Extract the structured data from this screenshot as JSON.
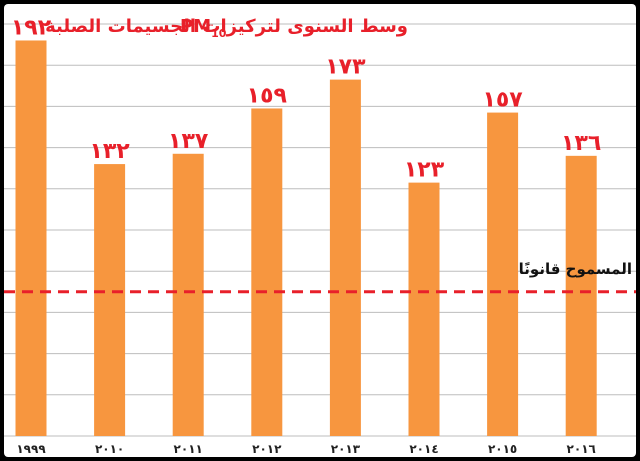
{
  "chart_data": {
    "type": "bar",
    "title": "وسط السنوى لتركيزات الجسيمات الصلبة",
    "title_pm": "PM",
    "title_pm_sub": "10",
    "categories": [
      "1999",
      "2010",
      "2011",
      "2012",
      "2013",
      "2014",
      "2015",
      "2016"
    ],
    "tick_labels": [
      "١٩٩٩",
      "٢٠١٠",
      "٢٠١١",
      "٢٠١٢",
      "٢٠١٣",
      "٢٠١٤",
      "٢٠١٥",
      "٢٠١٦"
    ],
    "values": [
      192,
      132,
      137,
      159,
      173,
      123,
      157,
      136
    ],
    "value_labels": [
      "١٩٢",
      "١٣٢",
      "١٣٧",
      "١٥٩",
      "١٧٣",
      "١٢٣",
      "١٥٧",
      "١٣٦"
    ],
    "ylim": [
      0,
      200
    ],
    "grid": true,
    "reference_line": {
      "value": 70,
      "label": "المسموح قانونًا"
    },
    "colors": {
      "bar": "#f7963f",
      "value_label": "#e8202a",
      "title": "#e8202a",
      "reference_line": "#e8202a",
      "grid": "#bdbdbd",
      "tick_label": "#222222"
    }
  }
}
